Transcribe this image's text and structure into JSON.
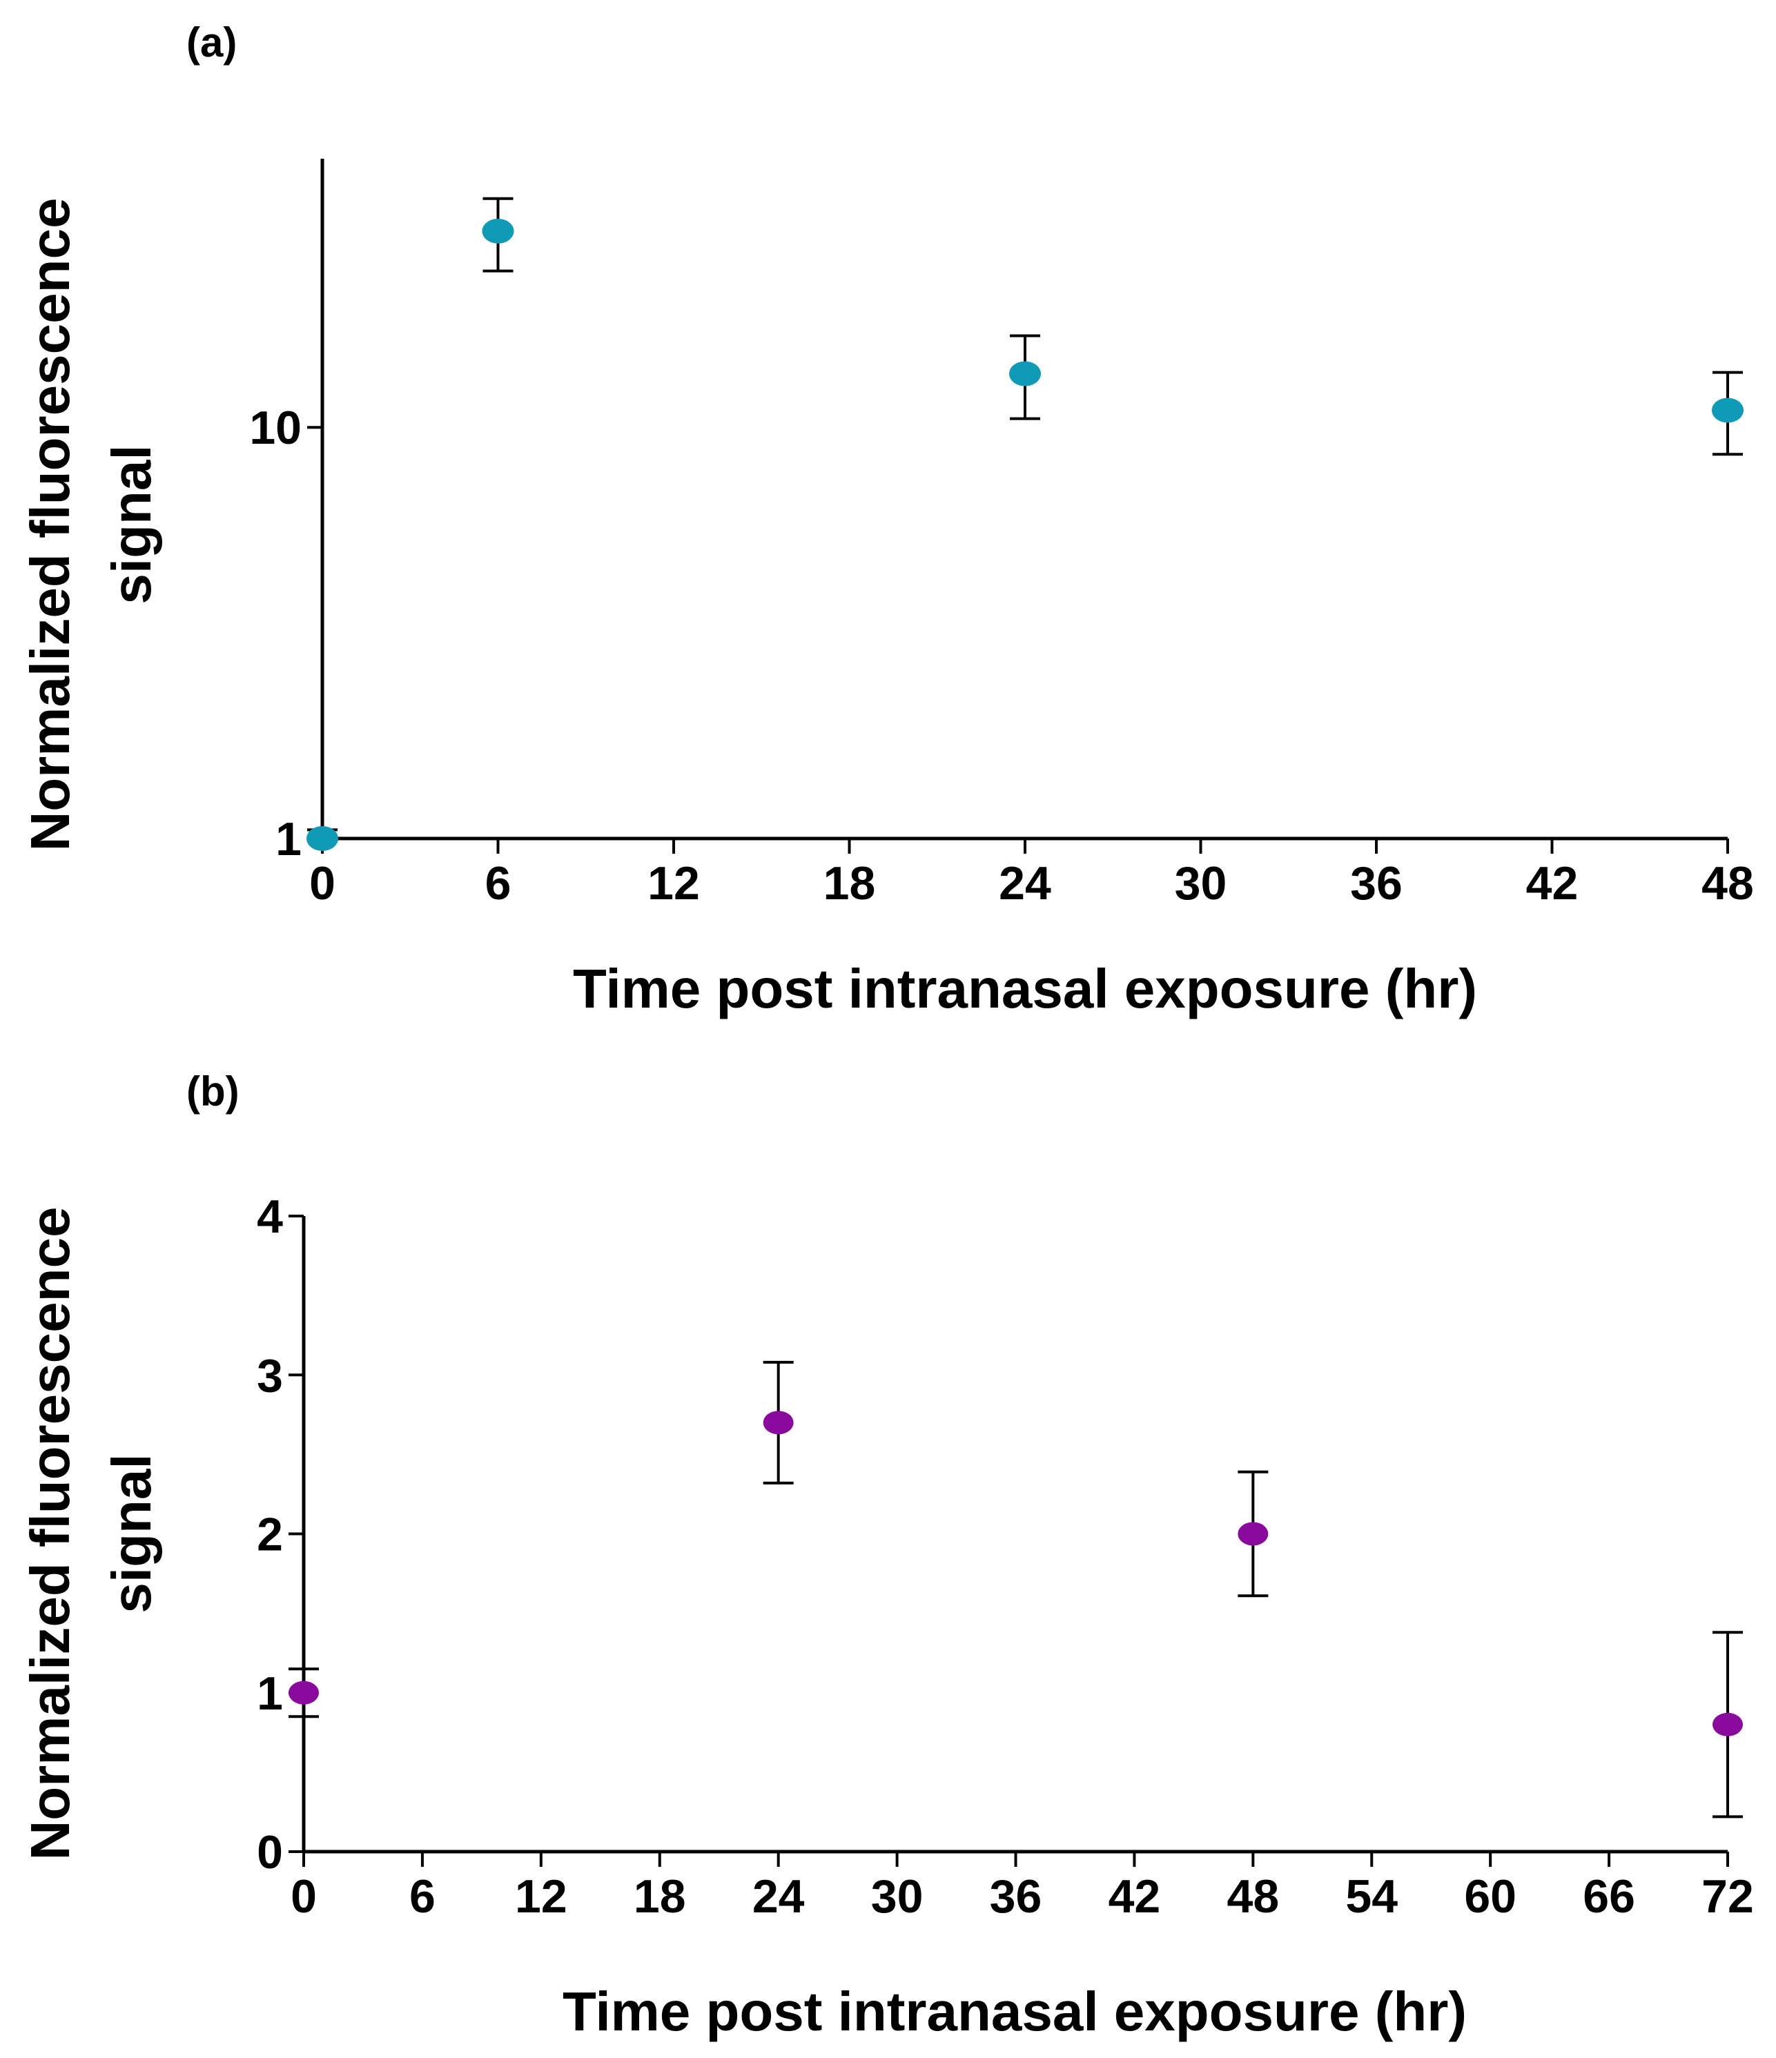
{
  "chart_data": [
    {
      "panel_label": "(a)",
      "type": "scatter",
      "yscale": "log",
      "xlabel": "Time post intranasal exposure (hr)",
      "ylabel_lines": [
        "Normalized fluorescence",
        "signal"
      ],
      "xlim": [
        0,
        48
      ],
      "ylim": [
        1,
        45
      ],
      "xticks": [
        0,
        6,
        12,
        18,
        24,
        30,
        36,
        42,
        48
      ],
      "yticks": [
        1,
        10
      ],
      "ytick_labels": [
        "1",
        "10"
      ],
      "grid": false,
      "marker_color": "#0f9ab5",
      "points": [
        {
          "x": 0,
          "y": 1.0,
          "err_low": 0.0,
          "err_high": 0.05
        },
        {
          "x": 6,
          "y": 30,
          "err_low": 6,
          "err_high": 6
        },
        {
          "x": 24,
          "y": 13.5,
          "err_low": 3.0,
          "err_high": 3.2
        },
        {
          "x": 48,
          "y": 11,
          "err_low": 2.4,
          "err_high": 2.6
        }
      ]
    },
    {
      "panel_label": "(b)",
      "type": "scatter",
      "yscale": "linear",
      "xlabel": "Time post intranasal exposure (hr)",
      "ylabel_lines": [
        "Normalized fluorescence",
        "signal"
      ],
      "xlim": [
        0,
        72
      ],
      "ylim": [
        0,
        4
      ],
      "xticks": [
        0,
        6,
        12,
        18,
        24,
        30,
        36,
        42,
        48,
        54,
        60,
        66,
        72
      ],
      "yticks": [
        0,
        1,
        2,
        3,
        4
      ],
      "ytick_labels": [
        "0",
        "1",
        "2",
        "3",
        "4"
      ],
      "grid": false,
      "marker_color": "#8b0a9e",
      "points": [
        {
          "x": 0,
          "y": 1.0,
          "err_low": 0.15,
          "err_high": 0.15
        },
        {
          "x": 24,
          "y": 2.7,
          "err_low": 0.38,
          "err_high": 0.38
        },
        {
          "x": 48,
          "y": 2.0,
          "err_low": 0.39,
          "err_high": 0.39
        },
        {
          "x": 72,
          "y": 0.8,
          "err_low": 0.58,
          "err_high": 0.58
        }
      ]
    }
  ]
}
